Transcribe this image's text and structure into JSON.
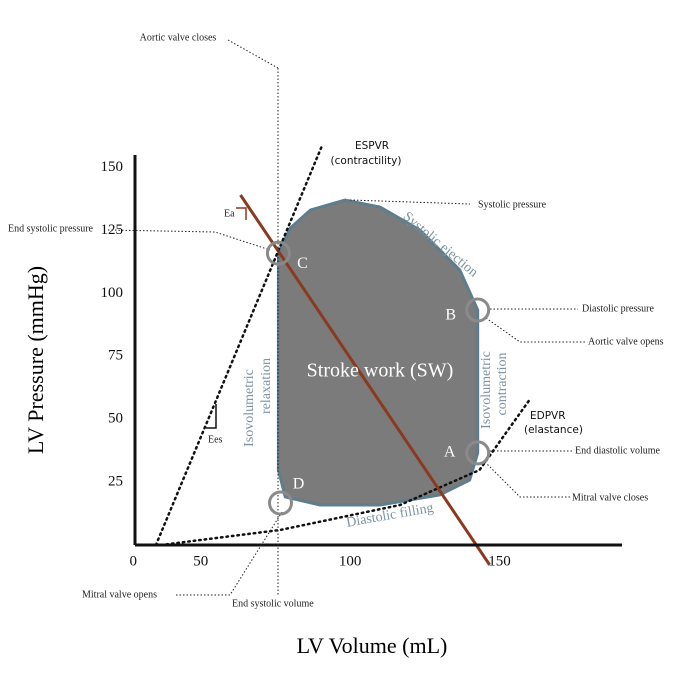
{
  "chart_data": {
    "type": "line",
    "x_label": "LV Volume (mL)",
    "y_label": "LV Pressure (mmHg)",
    "xlim": [
      28,
      191
    ],
    "ylim": [
      0,
      155
    ],
    "xticks": [
      50,
      100,
      150
    ],
    "yticks": [
      0,
      25,
      50,
      75,
      100,
      125,
      150
    ],
    "series": [
      {
        "color": "#5f7d8c",
        "fill": "#7b7b7b",
        "style": "solid",
        "x": [
          76,
          76,
          78.3,
          90,
          110,
          130,
          140,
          142.7,
          142.7,
          136.7,
          123.3,
          110,
          98.3,
          86.7,
          80,
          76
        ],
        "values": [
          116,
          29.8,
          19.1,
          15.9,
          15.9,
          19.9,
          25.8,
          36.6,
          93.4,
          109.3,
          125.2,
          134.3,
          137.1,
          133.1,
          126,
          116
        ]
      },
      {
        "color": "#111111",
        "style": "dotted",
        "x": [
          35,
          90.7
        ],
        "values": [
          0,
          159
        ]
      },
      {
        "color": "#111111",
        "style": "dotted",
        "x": [
          36.7,
          76.7,
          116.7,
          143.3,
          160
        ],
        "values": [
          0,
          6,
          15.9,
          29.8,
          57.6
        ]
      },
      {
        "color": "#8b3a1f",
        "style": "solid",
        "x": [
          63.3,
          146.7
        ],
        "values": [
          139.1,
          -7.9
        ]
      }
    ],
    "points": {
      "x": [
        76,
        142.7,
        142.7,
        76.7
      ],
      "values": [
        116,
        93.4,
        36.6,
        16.7
      ],
      "labels": [
        "C",
        "B",
        "A",
        "D"
      ],
      "color": "#8a8a8a"
    },
    "annotations": {
      "aortic_valve_closes": "Aortic valve closes",
      "espvr": "ESPVR",
      "contractility": "(contractility)",
      "systolic_pressure": "Systolic pressure",
      "end_systolic_pressure": "End systolic pressure",
      "diastolic_pressure": "Diastolic pressure",
      "aortic_valve_opens": "Aortic valve opens",
      "edpvr": "EDPVR",
      "elastance": "(elastance)",
      "end_diastolic_volume": "End diastolic volume",
      "mitral_valve_closes": "Mitral valve closes",
      "mitral_valve_opens": "Mitral valve opens",
      "end_systolic_volume": "End systolic volume",
      "ea": "Ea",
      "ees": "Ees",
      "systolic_ejection": "Systolic ejection",
      "isovolumetric_left": "Isovolumetric",
      "relaxation": "relaxation",
      "isovolumetric_right": "Isovolumetric",
      "contraction": "contraction",
      "diastolic_filling": "Diastolic filling",
      "stroke_work": "Stroke work (SW)"
    }
  }
}
